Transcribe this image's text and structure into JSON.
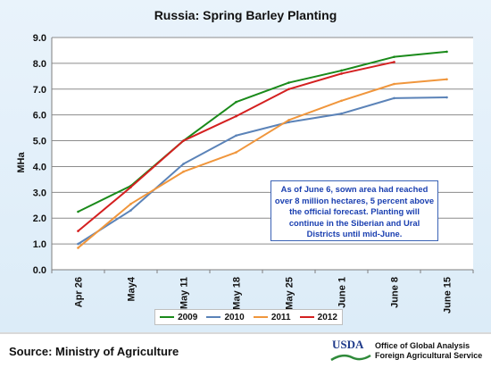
{
  "chart_data": {
    "type": "line",
    "title": "Russia:  Spring Barley Planting",
    "ylabel": "MHa",
    "xlabel": "",
    "ylim": [
      0,
      9
    ],
    "yticks": [
      "0.0",
      "1.0",
      "2.0",
      "3.0",
      "4.0",
      "5.0",
      "6.0",
      "7.0",
      "8.0",
      "9.0"
    ],
    "grid": true,
    "legend_position": "bottom",
    "categories": [
      "Apr 26",
      "May4",
      "May 11",
      "May 18",
      "May 25",
      "June 1",
      "June 8",
      "June 15"
    ],
    "series": [
      {
        "name": "2009",
        "color": "#1a8a1a",
        "values": [
          2.25,
          3.25,
          5.0,
          6.5,
          7.25,
          7.72,
          8.25,
          8.45
        ]
      },
      {
        "name": "2010",
        "color": "#5b83b8",
        "values": [
          1.0,
          2.3,
          4.1,
          5.2,
          5.72,
          6.05,
          6.65,
          6.68
        ]
      },
      {
        "name": "2011",
        "color": "#f0963c",
        "values": [
          0.85,
          2.55,
          3.8,
          4.55,
          5.8,
          6.55,
          7.2,
          7.38
        ]
      },
      {
        "name": "2012",
        "color": "#d42020",
        "values": [
          1.5,
          3.2,
          5.0,
          5.95,
          7.0,
          7.6,
          8.05,
          null
        ]
      }
    ],
    "annotation": "As of June 6, sown area had reached over 8 million hectares, 5 percent above the official forecast.  Planting will continue in the Siberian and Ural Districts until mid-June."
  },
  "footer": {
    "source": "Source:  Ministry of Agriculture",
    "logo_text": "USDA",
    "org_line1": "Office of Global Analysis",
    "org_line2": "Foreign Agricultural Service"
  }
}
